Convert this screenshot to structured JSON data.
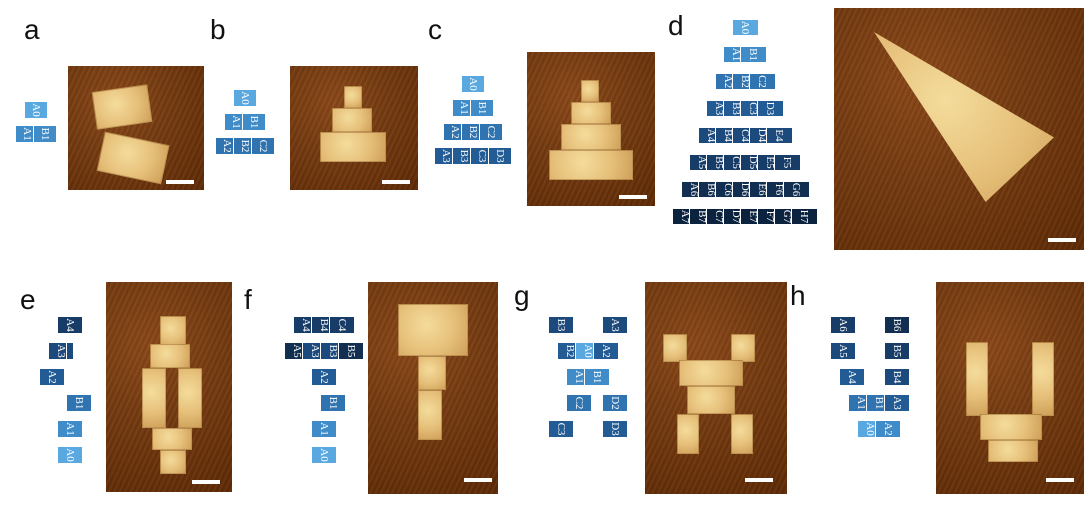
{
  "labels": {
    "a": "a",
    "b": "b",
    "c": "c",
    "d": "d",
    "e": "e",
    "f": "f",
    "g": "g",
    "h": "h"
  },
  "colors": {
    "row0": "#5aa8e0",
    "row1": "#3f8cc9",
    "row2": "#2f73b0",
    "row3": "#235c95",
    "row4": "#1d4a7d",
    "row5": "#173c67",
    "row6": "#122f52",
    "row7": "#0c2340",
    "background": "#ffffff"
  },
  "triangle_rows": [
    [
      "A0"
    ],
    [
      "A1",
      "B1"
    ],
    [
      "A2",
      "B2",
      "C2"
    ],
    [
      "A3",
      "B3",
      "C3",
      "D3"
    ],
    [
      "A4",
      "B4",
      "C4",
      "D4",
      "E4"
    ],
    [
      "A5",
      "B5",
      "C5",
      "D5",
      "E5",
      "F5"
    ],
    [
      "A6",
      "B6",
      "C6",
      "D6",
      "E6",
      "F6",
      "G6"
    ],
    [
      "A7",
      "B7",
      "C7",
      "D7",
      "E7",
      "F7",
      "G7",
      "H7"
    ]
  ],
  "panel_e": {
    "rows": [
      [
        "A4"
      ],
      [
        "A3",
        "B3"
      ],
      [
        "A2",
        "B2"
      ],
      [
        "B1"
      ],
      [
        "A1"
      ],
      [
        "A0"
      ]
    ]
  },
  "panel_f": {
    "rows": [
      [
        "A4",
        "B4",
        "C4"
      ],
      [
        "A5",
        "A3",
        "B3",
        "B5"
      ],
      [
        "A2"
      ],
      [
        "B1"
      ],
      [
        "A1"
      ],
      [
        "A0"
      ]
    ]
  },
  "panel_g": {
    "rows": [
      [
        "B3",
        "A3"
      ],
      [
        "B2",
        "A0",
        "A2"
      ],
      [
        "A1",
        "B1"
      ],
      [
        "C2",
        "D2"
      ],
      [
        "C3",
        "D3"
      ]
    ]
  },
  "panel_h": {
    "rows": [
      [
        "A6",
        "B6"
      ],
      [
        "A5",
        "B5"
      ],
      [
        "A4",
        "B4"
      ],
      [
        "A1",
        "B1",
        "A3"
      ],
      [
        "A0",
        "A2"
      ]
    ]
  }
}
